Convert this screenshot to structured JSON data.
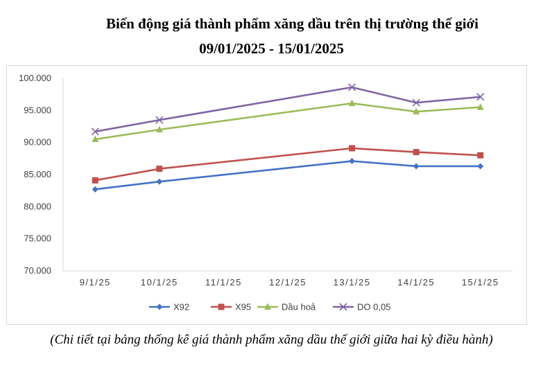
{
  "title_line1": "Biến động giá thành phẩm xăng dầu trên thị trường thế giới",
  "title_line2": "09/01/2025 - 15/01/2025",
  "caption": "(Chi tiết tại bảng thống kê giá thành phẩm xăng dầu thế giới giữa hai kỳ điều hành)",
  "chart_data": {
    "type": "line",
    "title": "",
    "xlabel": "",
    "ylabel": "",
    "categories": [
      "9/1/25",
      "10/1/25",
      "11/1/25",
      "12/1/25",
      "13/1/25",
      "14/1/25",
      "15/1/25"
    ],
    "ylim": [
      70000,
      100000
    ],
    "yticks": [
      70000,
      75000,
      80000,
      85000,
      90000,
      95000,
      100000
    ],
    "ytick_labels": [
      "70.000",
      "75.000",
      "80.000",
      "85.000",
      "90.000",
      "95.000",
      "100.000"
    ],
    "grid": false,
    "legend_position": "bottom",
    "series": [
      {
        "name": "X92",
        "color": "#4472C4",
        "marker": "diamond",
        "values": [
          82700,
          83900,
          null,
          null,
          87100,
          86300,
          86300
        ]
      },
      {
        "name": "X95",
        "color": "#C0504D",
        "marker": "square",
        "values": [
          84100,
          85900,
          null,
          null,
          89100,
          88500,
          88000
        ]
      },
      {
        "name": "Dầu hoả",
        "color": "#9BBB59",
        "marker": "triangle",
        "values": [
          90500,
          92000,
          null,
          null,
          96100,
          94800,
          95500
        ]
      },
      {
        "name": "DO 0,05",
        "color": "#8064A2",
        "marker": "x",
        "values": [
          91700,
          93500,
          null,
          null,
          98600,
          96200,
          97100
        ]
      }
    ]
  }
}
